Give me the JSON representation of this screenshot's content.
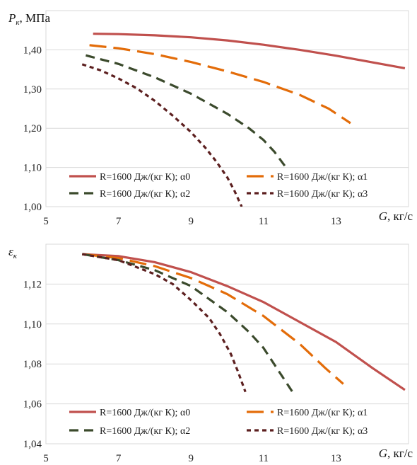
{
  "chart_data": [
    {
      "type": "line",
      "ylabel_main": "P",
      "ylabel_sub": "к",
      "ylabel_unit": ", МПа",
      "xlabel_main": "G",
      "xlabel_unit": ", кг/с",
      "xlim": [
        5,
        15
      ],
      "ylim": [
        1.0,
        1.5
      ],
      "xticks": [
        5,
        7,
        9,
        11,
        13
      ],
      "xtick_labels": [
        "5",
        "7",
        "9",
        "11",
        "13"
      ],
      "yticks": [
        1.0,
        1.1,
        1.2,
        1.3,
        1.4
      ],
      "ytick_labels": [
        "1,00",
        "1,10",
        "1,20",
        "1,30",
        "1,40"
      ],
      "grid": "horizontal",
      "legend_position": "bottom",
      "series": [
        {
          "name": "R=1600 Дж/(кг К); α0",
          "color": "#c0504d",
          "dash": "solid",
          "points": [
            [
              6.3,
              1.441
            ],
            [
              7.0,
              1.44
            ],
            [
              8.0,
              1.437
            ],
            [
              9.0,
              1.432
            ],
            [
              10.0,
              1.424
            ],
            [
              11.0,
              1.413
            ],
            [
              12.0,
              1.4
            ],
            [
              13.0,
              1.385
            ],
            [
              14.0,
              1.368
            ],
            [
              14.9,
              1.353
            ]
          ]
        },
        {
          "name": "R=1600 Дж/(кг К); α1",
          "color": "#e36c09",
          "dash": "long",
          "points": [
            [
              6.2,
              1.412
            ],
            [
              7.0,
              1.404
            ],
            [
              8.0,
              1.389
            ],
            [
              9.0,
              1.369
            ],
            [
              10.0,
              1.345
            ],
            [
              11.0,
              1.318
            ],
            [
              12.0,
              1.285
            ],
            [
              12.8,
              1.25
            ],
            [
              13.4,
              1.213
            ]
          ]
        },
        {
          "name": "R=1600 Дж/(кг К); α2",
          "color": "#3b4a2c",
          "dash": "medium",
          "points": [
            [
              6.1,
              1.386
            ],
            [
              7.0,
              1.364
            ],
            [
              8.0,
              1.33
            ],
            [
              9.0,
              1.288
            ],
            [
              10.0,
              1.237
            ],
            [
              10.6,
              1.2
            ],
            [
              11.0,
              1.17
            ],
            [
              11.3,
              1.14
            ],
            [
              11.7,
              1.09
            ]
          ]
        },
        {
          "name": "R=1600 Дж/(кг К); α3",
          "color": "#5c1f1f",
          "dash": "short",
          "points": [
            [
              6.0,
              1.363
            ],
            [
              6.5,
              1.348
            ],
            [
              7.0,
              1.327
            ],
            [
              7.5,
              1.302
            ],
            [
              8.0,
              1.27
            ],
            [
              8.5,
              1.232
            ],
            [
              9.0,
              1.19
            ],
            [
              9.4,
              1.15
            ],
            [
              9.7,
              1.115
            ],
            [
              10.0,
              1.075
            ],
            [
              10.2,
              1.04
            ],
            [
              10.4,
              1.0
            ]
          ]
        }
      ]
    },
    {
      "type": "line",
      "ylabel_main": "ε",
      "ylabel_sub": "к",
      "ylabel_unit": "",
      "xlabel_main": "G",
      "xlabel_unit": ", кг/с",
      "xlim": [
        5,
        15
      ],
      "ylim": [
        1.04,
        1.14
      ],
      "xticks": [
        5,
        7,
        9,
        11,
        13
      ],
      "xtick_labels": [
        "5",
        "7",
        "9",
        "11",
        "13"
      ],
      "yticks": [
        1.04,
        1.06,
        1.08,
        1.1,
        1.12
      ],
      "ytick_labels": [
        "1,04",
        "1,06",
        "1,08",
        "1,10",
        "1,12"
      ],
      "grid": "horizontal",
      "legend_position": "bottom",
      "series": [
        {
          "name": "R=1600 Дж/(кг К); α0",
          "color": "#c0504d",
          "dash": "solid",
          "points": [
            [
              6.0,
              1.135
            ],
            [
              7.0,
              1.134
            ],
            [
              8.0,
              1.131
            ],
            [
              9.0,
              1.126
            ],
            [
              10.0,
              1.119
            ],
            [
              11.0,
              1.111
            ],
            [
              12.0,
              1.101
            ],
            [
              13.0,
              1.091
            ],
            [
              14.0,
              1.078
            ],
            [
              14.9,
              1.067
            ]
          ]
        },
        {
          "name": "R=1600 Дж/(кг К); α1",
          "color": "#e36c09",
          "dash": "long",
          "points": [
            [
              6.0,
              1.135
            ],
            [
              7.0,
              1.133
            ],
            [
              8.0,
              1.129
            ],
            [
              9.0,
              1.123
            ],
            [
              10.0,
              1.115
            ],
            [
              11.0,
              1.104
            ],
            [
              12.0,
              1.09
            ],
            [
              12.7,
              1.078
            ],
            [
              13.2,
              1.07
            ]
          ]
        },
        {
          "name": "R=1600 Дж/(кг К); α2",
          "color": "#3b4a2c",
          "dash": "medium",
          "points": [
            [
              6.0,
              1.135
            ],
            [
              7.0,
              1.132
            ],
            [
              8.0,
              1.127
            ],
            [
              9.0,
              1.119
            ],
            [
              10.0,
              1.106
            ],
            [
              10.6,
              1.096
            ],
            [
              11.0,
              1.088
            ],
            [
              11.4,
              1.077
            ],
            [
              11.8,
              1.066
            ]
          ]
        },
        {
          "name": "R=1600 Дж/(кг К); α3",
          "color": "#5c1f1f",
          "dash": "short",
          "points": [
            [
              6.0,
              1.135
            ],
            [
              7.0,
              1.132
            ],
            [
              8.0,
              1.125
            ],
            [
              8.5,
              1.12
            ],
            [
              9.0,
              1.112
            ],
            [
              9.5,
              1.103
            ],
            [
              9.8,
              1.095
            ],
            [
              10.1,
              1.085
            ],
            [
              10.3,
              1.076
            ],
            [
              10.5,
              1.066
            ]
          ]
        }
      ]
    }
  ]
}
